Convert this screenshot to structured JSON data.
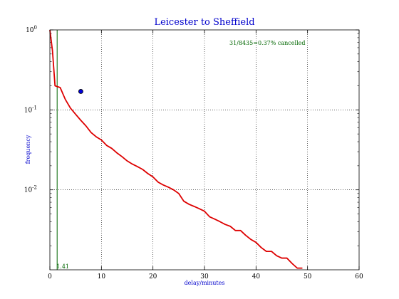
{
  "chart_data": {
    "type": "line",
    "title": "Leicester to Sheffield",
    "xlabel": "delay/minutes",
    "ylabel": "frequency",
    "xlim": [
      0,
      60
    ],
    "ylim": [
      0.001,
      1
    ],
    "yscale": "log",
    "grid": true,
    "x_ticks": [
      "0",
      "10",
      "20",
      "30",
      "40",
      "50",
      "60"
    ],
    "y_ticks": [
      {
        "value": 1,
        "base": "10",
        "exp": "0"
      },
      {
        "value": 0.1,
        "base": "10",
        "exp": "-1"
      },
      {
        "value": 0.01,
        "base": "10",
        "exp": "-2"
      }
    ],
    "annotation": "31/8435=0.37% cancelled",
    "vline": {
      "x": 1.41,
      "label": "1.41"
    },
    "marker": {
      "x": 6,
      "y": 0.17
    },
    "colors": {
      "title": "#0000cc",
      "axis_labels": "#0000cc",
      "series": "#dd0000",
      "vline": "#006600",
      "annotation": "#006600",
      "marker_fill": "#0000dd",
      "grid": "#000000"
    },
    "series": [
      {
        "x": [
          0,
          0.5,
          1,
          2,
          3,
          4,
          5,
          6,
          7,
          8,
          9,
          10,
          11,
          12,
          13,
          14,
          15,
          16,
          17,
          18,
          19,
          20,
          21,
          22,
          23,
          24,
          25,
          26,
          27,
          28,
          29,
          30,
          31,
          32,
          33,
          34,
          35,
          36,
          37,
          38,
          39,
          40,
          41,
          42,
          43,
          44,
          45,
          46,
          47,
          48,
          49
        ],
        "y": [
          1,
          0.55,
          0.2,
          0.19,
          0.135,
          0.105,
          0.088,
          0.074,
          0.063,
          0.052,
          0.046,
          0.042,
          0.036,
          0.033,
          0.029,
          0.026,
          0.023,
          0.021,
          0.0195,
          0.018,
          0.016,
          0.0145,
          0.0125,
          0.0115,
          0.0108,
          0.01,
          0.009,
          0.0072,
          0.0066,
          0.0062,
          0.0058,
          0.0054,
          0.0046,
          0.0043,
          0.004,
          0.0037,
          0.0035,
          0.0031,
          0.0031,
          0.0027,
          0.0024,
          0.0022,
          0.0019,
          0.0017,
          0.0017,
          0.0015,
          0.0014,
          0.0014,
          0.0012,
          0.00105,
          0.00105
        ]
      }
    ]
  }
}
